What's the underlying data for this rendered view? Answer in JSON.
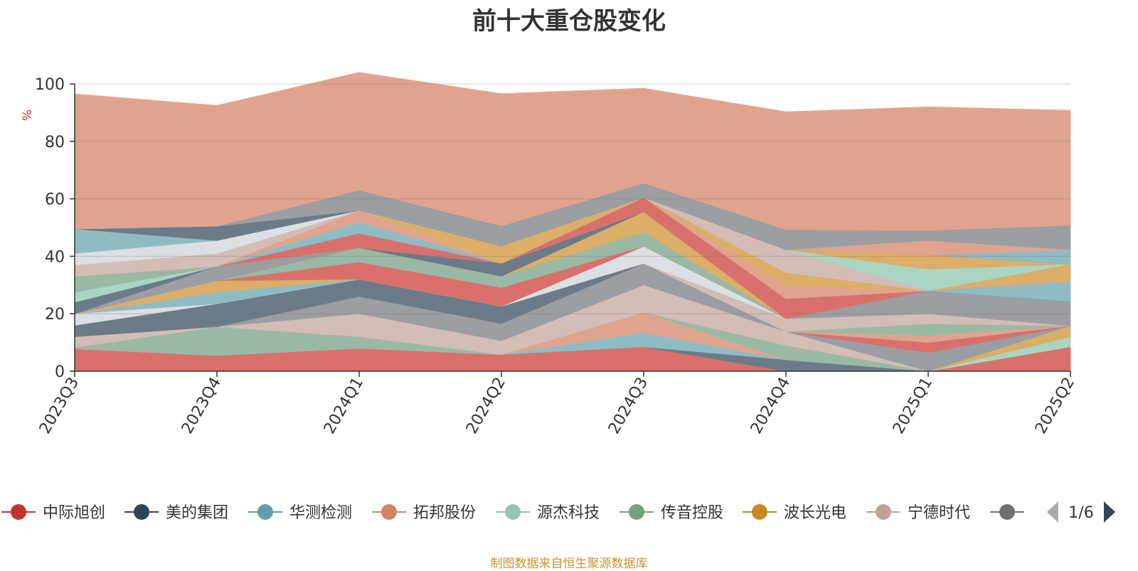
{
  "chart_data": {
    "type": "area",
    "stacked": true,
    "title": "前十大重仓股变化",
    "ylabel": "%",
    "ylim": [
      0,
      100
    ],
    "yticks": [
      0,
      20,
      40,
      60,
      80,
      100
    ],
    "grid": true,
    "categories": [
      "2023Q3",
      "2023Q4",
      "2024Q1",
      "2024Q2",
      "2024Q3",
      "2024Q4",
      "2025Q1",
      "2025Q2"
    ],
    "series": [
      {
        "name": "中际旭创",
        "color": "#d9706c",
        "values": [
          7.8,
          5.5,
          8.0,
          5.8,
          8.5,
          0,
          0,
          8.5
        ]
      },
      {
        "name": "美的集团",
        "color": "#6b7b89",
        "values": [
          0,
          0,
          0,
          0,
          0,
          4.0,
          0,
          0
        ]
      },
      {
        "name": "华测检测",
        "color": "#8fbcc4",
        "values": [
          0,
          0,
          0,
          0,
          5.0,
          0,
          0,
          0
        ]
      },
      {
        "name": "拓邦股份",
        "color": "#e0a48e",
        "values": [
          0,
          0,
          0,
          0,
          7.0,
          0,
          0,
          0
        ]
      },
      {
        "name": "源杰科技",
        "color": "#aad5c3",
        "values": [
          0,
          0,
          0,
          0,
          0,
          0,
          0,
          3.5
        ]
      },
      {
        "name": "传音控股",
        "color": "#99b9a5",
        "values": [
          0.5,
          10.0,
          4.0,
          0,
          0,
          5.0,
          0,
          0
        ]
      },
      {
        "name": "波长光电",
        "color": "#dcae67",
        "values": [
          0,
          0,
          0,
          0,
          0,
          0,
          0,
          3.8
        ]
      },
      {
        "name": "宁德时代",
        "color": "#d4bdb7",
        "values": [
          3.7,
          0,
          8.0,
          4.8,
          9.5,
          4.8,
          0,
          0
        ]
      },
      {
        "name": "",
        "color": "#9b9ea3",
        "values": [
          0,
          0,
          6.0,
          6.0,
          7.5,
          0,
          6.5,
          0
        ]
      },
      {
        "name": "",
        "color": "#d9706c",
        "values": [
          0,
          0,
          0,
          0,
          0,
          0,
          3.5,
          0
        ]
      },
      {
        "name": "",
        "color": "#e0a48e",
        "values": [
          0,
          0,
          0,
          0,
          0,
          0,
          2.5,
          0
        ]
      },
      {
        "name": "",
        "color": "#99b9a5",
        "values": [
          0,
          0,
          0,
          0,
          0,
          0,
          4.0,
          0
        ]
      },
      {
        "name": "",
        "color": "#d4bdb7",
        "values": [
          0,
          0,
          0,
          0,
          0,
          4.5,
          3.5,
          0
        ]
      },
      {
        "name": "",
        "color": "#9b9ea3",
        "values": [
          0,
          0,
          0,
          0,
          0,
          0,
          8.0,
          8.5
        ]
      },
      {
        "name": "",
        "color": "#6b7b89",
        "values": [
          4.0,
          8.0,
          6.0,
          6.0,
          0,
          0,
          0,
          0
        ]
      },
      {
        "name": "",
        "color": "#8fbcc4",
        "values": [
          0,
          0,
          0,
          0,
          0,
          0,
          0,
          7.0
        ]
      },
      {
        "name": "",
        "color": "#dcdfe4",
        "values": [
          4.0,
          0,
          0,
          0,
          6.0,
          0,
          0,
          0
        ]
      },
      {
        "name": "",
        "color": "#8fbcc4",
        "values": [
          0,
          4.0,
          0,
          0,
          0,
          0,
          0,
          0
        ]
      },
      {
        "name": "",
        "color": "#dcae67",
        "values": [
          0,
          4.0,
          0,
          0,
          0,
          0,
          0,
          0
        ]
      },
      {
        "name": "",
        "color": "#d9706c",
        "values": [
          0,
          0,
          6.0,
          6.5,
          0,
          0,
          0,
          0
        ]
      },
      {
        "name": "",
        "color": "#99b9a5",
        "values": [
          0,
          0,
          5.0,
          4.0,
          5.0,
          0,
          0,
          0
        ]
      },
      {
        "name": "",
        "color": "#dcae67",
        "values": [
          0,
          0,
          0,
          0,
          7.0,
          0,
          0,
          0
        ]
      },
      {
        "name": "",
        "color": "#9b9ea3",
        "values": [
          0,
          5.0,
          0,
          0,
          0,
          0,
          0,
          0
        ]
      },
      {
        "name": "",
        "color": "#d9706c",
        "values": [
          0,
          0,
          0,
          0,
          0,
          7.0,
          0,
          0
        ]
      },
      {
        "name": "",
        "color": "#6b7b89",
        "values": [
          4.0,
          0,
          0,
          4.5,
          0,
          0,
          0,
          0
        ]
      },
      {
        "name": "",
        "color": "#aad5c3",
        "values": [
          3.5,
          0,
          0,
          0,
          0,
          0,
          0,
          0
        ]
      },
      {
        "name": "",
        "color": "#99b9a5",
        "values": [
          5.5,
          0,
          0,
          0,
          0,
          0,
          0,
          0
        ]
      },
      {
        "name": "",
        "color": "#dcae67",
        "values": [
          0,
          0,
          0,
          0,
          0,
          0,
          0,
          6.0
        ]
      },
      {
        "name": "",
        "color": "#d9706c",
        "values": [
          0,
          0,
          5.0,
          0,
          5.0,
          0,
          0,
          0
        ]
      },
      {
        "name": "",
        "color": "#8fbcc4",
        "values": [
          0,
          0,
          4.0,
          0,
          0,
          0,
          0,
          0
        ]
      },
      {
        "name": "",
        "color": "#e0a48e",
        "values": [
          0,
          0,
          4.0,
          0,
          0,
          4.5,
          0,
          0
        ]
      },
      {
        "name": "",
        "color": "#dcae67",
        "values": [
          0,
          0,
          0,
          0,
          0,
          4.5,
          0,
          0
        ]
      },
      {
        "name": "",
        "color": "#d4bdb7",
        "values": [
          4.0,
          4.5,
          0,
          0,
          0,
          8.0,
          0,
          0
        ]
      },
      {
        "name": "",
        "color": "#dcdfe4",
        "values": [
          4.0,
          4.5,
          0,
          0,
          0,
          0,
          0,
          0
        ]
      },
      {
        "name": "",
        "color": "#8fbcc4",
        "values": [
          8.5,
          0,
          0,
          0,
          0,
          0,
          0,
          0
        ]
      },
      {
        "name": "",
        "color": "#aad5c3",
        "values": [
          0,
          0,
          0,
          0,
          0,
          0,
          7.5,
          0
        ]
      },
      {
        "name": "",
        "color": "#dcae67",
        "values": [
          0,
          0,
          0,
          6.0,
          0,
          0,
          5.0,
          0
        ]
      },
      {
        "name": "",
        "color": "#6b7b89",
        "values": [
          0,
          5.0,
          0,
          0,
          0,
          0,
          0,
          0
        ]
      },
      {
        "name": "",
        "color": "#8fbcc4",
        "values": [
          0,
          0,
          0,
          0,
          0,
          0,
          0,
          5.0
        ]
      },
      {
        "name": "",
        "color": "#e0a48e",
        "values": [
          0,
          0,
          0,
          0,
          0,
          0,
          5.0,
          0
        ]
      },
      {
        "name": "",
        "color": "#9b9ea3",
        "values": [
          0,
          0,
          7.0,
          7.0,
          5.0,
          7.0,
          3.5,
          8.5
        ]
      },
      {
        "name": "",
        "color": "#e0a48e",
        "values": [
          47.0,
          42.0,
          41.0,
          46.0,
          33.0,
          41.0,
          43.0,
          40.0
        ]
      }
    ],
    "legend_position": "bottom",
    "legend": {
      "items": [
        {
          "name": "中际旭创",
          "color": "#c23531"
        },
        {
          "name": "美的集团",
          "color": "#2f4554"
        },
        {
          "name": "华测检测",
          "color": "#61a0a8"
        },
        {
          "name": "拓邦股份",
          "color": "#d48265"
        },
        {
          "name": "源杰科技",
          "color": "#91c7ae"
        },
        {
          "name": "传音控股",
          "color": "#749f83"
        },
        {
          "name": "波长光电",
          "color": "#ca8622"
        },
        {
          "name": "宁德时代",
          "color": "#bda29a"
        },
        {
          "name": "",
          "color": "#6e7074"
        }
      ],
      "page_indicator": "1/6"
    }
  },
  "source_note": "制图数据来自恒生聚源数据库"
}
